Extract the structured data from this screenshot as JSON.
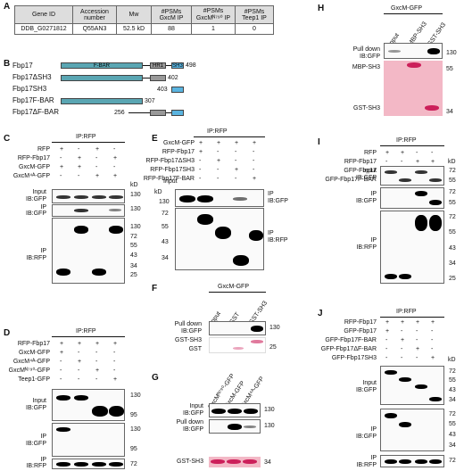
{
  "panels": {
    "A": "A",
    "B": "B",
    "C": "C",
    "D": "D",
    "E": "E",
    "F": "F",
    "G": "G",
    "H": "H",
    "I": "I",
    "J": "J"
  },
  "tableA": {
    "headers": [
      "Gene ID",
      "Accession number",
      "Mw",
      "#PSMs GxcM IP",
      "#PSMs GxcMᴺ⁷⁹⁰ IP",
      "#PSMs Teep1 IP"
    ],
    "row": [
      "DDB_G0271812",
      "Q55AN3",
      "52.5 kD",
      "88",
      "1",
      "0"
    ]
  },
  "panelB": {
    "rows": [
      "Fbp17",
      "Fbp17ΔSH3",
      "Fbp17SH3",
      "Fbp17F-BAR",
      "Fbp17ΔF-BAR"
    ],
    "ends": [
      "498",
      "402",
      "403",
      "307",
      "256"
    ],
    "domains": {
      "fbar": "F-BAR",
      "hr1": "HR1",
      "sh3": "SH3"
    }
  },
  "panelC": {
    "ip": "IP:RFP",
    "rows": [
      {
        "label": "RFP",
        "signs": [
          "+",
          "-",
          "+",
          "-"
        ]
      },
      {
        "label": "RFP-Fbp17",
        "signs": [
          "-",
          "+",
          "-",
          "+"
        ]
      },
      {
        "label": "GxcM-GFP",
        "signs": [
          "+",
          "+",
          "-",
          "-"
        ]
      },
      {
        "label": "GxcM⁴ᴬ-GFP",
        "signs": [
          "-",
          "-",
          "+",
          "+"
        ]
      }
    ],
    "kd": "kD",
    "blots": [
      {
        "label1": "Input",
        "label2": "IB:GFP"
      },
      {
        "label1": "IP",
        "label2": "IB:GFP"
      },
      {
        "label1": "IP",
        "label2": "IB:RFP"
      }
    ],
    "markers": [
      "130",
      "130",
      "130",
      "72",
      "55",
      "43",
      "34",
      "25"
    ]
  },
  "panelD": {
    "ip": "IP:RFP",
    "rows": [
      {
        "label": "RFP-Fbp17",
        "signs": [
          "+",
          "+",
          "+",
          "+"
        ]
      },
      {
        "label": "GxcM-GFP",
        "signs": [
          "+",
          "-",
          "-",
          "-"
        ]
      },
      {
        "label": "GxcM⁴ᴬ-GFP",
        "signs": [
          "-",
          "+",
          "-",
          "-"
        ]
      },
      {
        "label": "GxcMᴺ⁷⁹⁰-GFP",
        "signs": [
          "-",
          "-",
          "+",
          "-"
        ]
      },
      {
        "label": "Teep1-GFP",
        "signs": [
          "-",
          "-",
          "-",
          "+"
        ]
      }
    ],
    "blots": [
      {
        "label1": "Input",
        "label2": "IB:GFP"
      },
      {
        "label1": "IP",
        "label2": "IB:GFP"
      },
      {
        "label1": "IP",
        "label2": "IB:RFP"
      }
    ],
    "markers": [
      "130",
      "95",
      "130",
      "95",
      "72"
    ]
  },
  "panelE": {
    "ip": "IP:RFP",
    "rows": [
      {
        "label": "GxcM-GFP",
        "signs": [
          "+",
          "+",
          "+",
          "+"
        ]
      },
      {
        "label": "RFP-Fbp17",
        "signs": [
          "+",
          "-",
          "-",
          "-"
        ]
      },
      {
        "label": "RFP-Fbp17ΔSH3",
        "signs": [
          "-",
          "+",
          "-",
          "-"
        ]
      },
      {
        "label": "RFP-Fbp17SH3",
        "signs": [
          "-",
          "-",
          "+",
          "-"
        ]
      },
      {
        "label": "RFP-Fbp17F-BAR",
        "signs": [
          "-",
          "-",
          "-",
          "+"
        ]
      }
    ],
    "input": "Input",
    "kd": "kD",
    "blots": [
      {
        "label1": "IP",
        "label2": "IB:GFP"
      },
      {
        "label1": "IP",
        "label2": "IB:RFP"
      }
    ],
    "markers": [
      "130",
      "72",
      "55",
      "43",
      "34"
    ]
  },
  "panelF": {
    "title": "GxcM-GFP",
    "cols": [
      "Input",
      "GST",
      "GST-SH3"
    ],
    "labels": [
      "Pull down",
      "IB:GFP",
      "GST-SH3",
      "GST"
    ],
    "markers": [
      "130",
      "25"
    ]
  },
  "panelG": {
    "cols": [
      "GxcMᴺ⁷⁹⁰-GFP",
      "GxcM-GFP",
      "GxcM⁴ᴬ-GFP"
    ],
    "labels": [
      "Input",
      "IB:GFP",
      "Pull down",
      "IB:GFP",
      "GST-SH3"
    ],
    "markers": [
      "130",
      "130",
      "34"
    ]
  },
  "panelH": {
    "title": "GxcM-GFP",
    "cols": [
      "Input",
      "MBP-SH3",
      "GST-SH3"
    ],
    "labels": [
      "Pull down",
      "IB:GFP",
      "MBP-SH3",
      "GST-SH3"
    ],
    "markers": [
      "130",
      "55",
      "34"
    ]
  },
  "panelI": {
    "ip": "IP:RFP",
    "rows": [
      {
        "label": "RFP",
        "signs": [
          "+",
          "+",
          "-",
          "-"
        ]
      },
      {
        "label": "RFP-Fbp17",
        "signs": [
          "-",
          "-",
          "+",
          "+"
        ]
      },
      {
        "label": "GFP-Fbp17",
        "signs": [
          "+",
          "-",
          "+",
          "-"
        ]
      },
      {
        "label": "GFP-Fbp17F-BAR",
        "signs": [
          "-",
          "+",
          "-",
          "+"
        ]
      }
    ],
    "kd": "kD",
    "blots": [
      {
        "label1": "Input",
        "label2": "IB:GFP"
      },
      {
        "label1": "IP",
        "label2": "IB:GFP"
      },
      {
        "label1": "IP",
        "label2": "IB:RFP"
      }
    ],
    "markers": [
      "72",
      "55",
      "72",
      "55",
      "72",
      "55",
      "43",
      "34",
      "25"
    ]
  },
  "panelJ": {
    "ip": "IP:RFP",
    "rows": [
      {
        "label": "RFP-Fbp17",
        "signs": [
          "+",
          "+",
          "+",
          "+"
        ]
      },
      {
        "label": "GFP-Fbp17",
        "signs": [
          "+",
          "-",
          "-",
          "-"
        ]
      },
      {
        "label": "GFP-Fbp17F-BAR",
        "signs": [
          "-",
          "+",
          "-",
          "-"
        ]
      },
      {
        "label": "GFP-Fbp17ΔF-BAR",
        "signs": [
          "-",
          "-",
          "+",
          "-"
        ]
      },
      {
        "label": "GFP-Fbp17SH3",
        "signs": [
          "-",
          "-",
          "-",
          "+"
        ]
      }
    ],
    "kd": "kD",
    "blots": [
      {
        "label1": "Input",
        "label2": "IB:GFP"
      },
      {
        "label1": "IP",
        "label2": "IB:GFP"
      },
      {
        "label1": "IP",
        "label2": "IB:RFP"
      }
    ],
    "markers": [
      "72",
      "55",
      "43",
      "34",
      "72",
      "55",
      "43",
      "34",
      "72"
    ]
  }
}
